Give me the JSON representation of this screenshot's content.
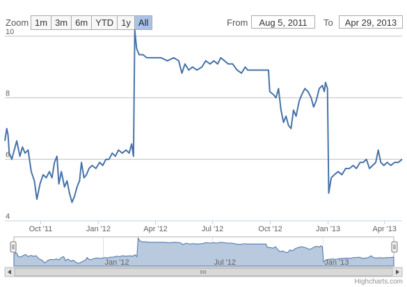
{
  "range_selector": {
    "zoom_label": "Zoom",
    "buttons": [
      {
        "label": "1m",
        "active": false
      },
      {
        "label": "3m",
        "active": false
      },
      {
        "label": "6m",
        "active": false
      },
      {
        "label": "YTD",
        "active": false
      },
      {
        "label": "1y",
        "active": false
      },
      {
        "label": "All",
        "active": true
      }
    ],
    "from_label": "From",
    "from_value": "Aug 5, 2011",
    "to_label": "To",
    "to_value": "Apr 29, 2013"
  },
  "credits": "Highcharts.com",
  "chart_data": {
    "type": "line",
    "series_color": "#4572a7",
    "navigator_fill": "#b9c9de",
    "ylim": [
      4,
      10
    ],
    "y_ticks": [
      4,
      6,
      8,
      10
    ],
    "x_range": [
      "2011-08-05",
      "2013-04-29"
    ],
    "x_ticks": [
      {
        "date": "2011-10-01",
        "label": "Oct '11"
      },
      {
        "date": "2012-01-01",
        "label": "Jan '12"
      },
      {
        "date": "2012-04-01",
        "label": "Apr '12"
      },
      {
        "date": "2012-07-01",
        "label": "Jul '12"
      },
      {
        "date": "2012-10-01",
        "label": "Oct '12"
      },
      {
        "date": "2013-01-01",
        "label": "Jan '13"
      },
      {
        "date": "2013-04-01",
        "label": "Apr '13"
      }
    ],
    "navigator_ticks": [
      {
        "date": "2012-01-01",
        "label": "Jan '12"
      },
      {
        "date": "2012-07-01",
        "label": "Jul '12"
      },
      {
        "date": "2013-01-01",
        "label": "Jan '13"
      }
    ],
    "points": [
      [
        "2011-08-05",
        6.6
      ],
      [
        "2011-08-08",
        7.0
      ],
      [
        "2011-08-10",
        6.8
      ],
      [
        "2011-08-12",
        6.2
      ],
      [
        "2011-08-16",
        6.0
      ],
      [
        "2011-08-20",
        6.3
      ],
      [
        "2011-08-24",
        6.6
      ],
      [
        "2011-08-29",
        6.1
      ],
      [
        "2011-09-02",
        6.4
      ],
      [
        "2011-09-06",
        6.2
      ],
      [
        "2011-09-11",
        6.3
      ],
      [
        "2011-09-16",
        5.6
      ],
      [
        "2011-09-21",
        5.3
      ],
      [
        "2011-09-25",
        4.7
      ],
      [
        "2011-09-30",
        5.2
      ],
      [
        "2011-10-05",
        5.5
      ],
      [
        "2011-10-10",
        5.4
      ],
      [
        "2011-10-15",
        5.6
      ],
      [
        "2011-10-19",
        5.4
      ],
      [
        "2011-10-23",
        5.9
      ],
      [
        "2011-10-27",
        6.1
      ],
      [
        "2011-10-30",
        5.2
      ],
      [
        "2011-11-03",
        5.6
      ],
      [
        "2011-11-08",
        5.1
      ],
      [
        "2011-11-12",
        5.3
      ],
      [
        "2011-11-16",
        4.9
      ],
      [
        "2011-11-20",
        4.6
      ],
      [
        "2011-11-24",
        4.8
      ],
      [
        "2011-11-28",
        5.1
      ],
      [
        "2011-12-02",
        5.3
      ],
      [
        "2011-12-05",
        5.9
      ],
      [
        "2011-12-09",
        5.4
      ],
      [
        "2011-12-13",
        5.5
      ],
      [
        "2011-12-17",
        5.7
      ],
      [
        "2011-12-22",
        5.8
      ],
      [
        "2011-12-28",
        5.7
      ],
      [
        "2012-01-03",
        5.9
      ],
      [
        "2012-01-08",
        5.8
      ],
      [
        "2012-01-13",
        6.0
      ],
      [
        "2012-01-18",
        6.0
      ],
      [
        "2012-01-23",
        6.2
      ],
      [
        "2012-01-28",
        6.1
      ],
      [
        "2012-02-02",
        6.3
      ],
      [
        "2012-02-08",
        6.2
      ],
      [
        "2012-02-14",
        6.3
      ],
      [
        "2012-02-19",
        6.2
      ],
      [
        "2012-02-23",
        6.5
      ],
      [
        "2012-02-26",
        6.1
      ],
      [
        "2012-02-28",
        10.2
      ],
      [
        "2012-03-02",
        9.6
      ],
      [
        "2012-03-06",
        9.4
      ],
      [
        "2012-03-12",
        9.4
      ],
      [
        "2012-03-18",
        9.3
      ],
      [
        "2012-03-25",
        9.3
      ],
      [
        "2012-04-01",
        9.3
      ],
      [
        "2012-04-10",
        9.3
      ],
      [
        "2012-04-20",
        9.2
      ],
      [
        "2012-04-30",
        9.3
      ],
      [
        "2012-05-08",
        9.2
      ],
      [
        "2012-05-13",
        8.8
      ],
      [
        "2012-05-18",
        9.1
      ],
      [
        "2012-05-24",
        8.9
      ],
      [
        "2012-05-30",
        9.0
      ],
      [
        "2012-06-06",
        8.9
      ],
      [
        "2012-06-14",
        9.0
      ],
      [
        "2012-06-20",
        9.2
      ],
      [
        "2012-06-27",
        9.1
      ],
      [
        "2012-07-03",
        9.2
      ],
      [
        "2012-07-09",
        9.1
      ],
      [
        "2012-07-14",
        9.3
      ],
      [
        "2012-07-20",
        9.2
      ],
      [
        "2012-07-26",
        9.1
      ],
      [
        "2012-08-02",
        9.1
      ],
      [
        "2012-08-09",
        8.9
      ],
      [
        "2012-08-16",
        8.8
      ],
      [
        "2012-08-22",
        9.0
      ],
      [
        "2012-08-26",
        8.9
      ],
      [
        "2012-08-30",
        8.9
      ],
      [
        "2012-09-15",
        8.9
      ],
      [
        "2012-09-28",
        8.9
      ],
      [
        "2012-09-30",
        8.2
      ],
      [
        "2012-10-06",
        8.1
      ],
      [
        "2012-10-10",
        8.0
      ],
      [
        "2012-10-14",
        8.3
      ],
      [
        "2012-10-18",
        7.6
      ],
      [
        "2012-10-22",
        7.2
      ],
      [
        "2012-10-26",
        7.4
      ],
      [
        "2012-10-30",
        7.1
      ],
      [
        "2012-11-03",
        7.0
      ],
      [
        "2012-11-07",
        7.6
      ],
      [
        "2012-11-11",
        7.4
      ],
      [
        "2012-11-16",
        7.9
      ],
      [
        "2012-11-20",
        8.1
      ],
      [
        "2012-11-25",
        8.3
      ],
      [
        "2012-11-30",
        8.2
      ],
      [
        "2012-12-05",
        8.0
      ],
      [
        "2012-12-09",
        7.7
      ],
      [
        "2012-12-13",
        7.9
      ],
      [
        "2012-12-18",
        8.3
      ],
      [
        "2012-12-23",
        8.4
      ],
      [
        "2012-12-26",
        8.2
      ],
      [
        "2012-12-28",
        8.5
      ],
      [
        "2012-12-31",
        8.3
      ],
      [
        "2013-01-02",
        4.9
      ],
      [
        "2013-01-06",
        5.4
      ],
      [
        "2013-01-11",
        5.5
      ],
      [
        "2013-01-17",
        5.6
      ],
      [
        "2013-01-23",
        5.5
      ],
      [
        "2013-01-29",
        5.7
      ],
      [
        "2013-02-04",
        5.7
      ],
      [
        "2013-02-10",
        5.8
      ],
      [
        "2013-02-15",
        5.7
      ],
      [
        "2013-02-21",
        5.9
      ],
      [
        "2013-02-26",
        5.9
      ],
      [
        "2013-03-03",
        6.0
      ],
      [
        "2013-03-08",
        5.7
      ],
      [
        "2013-03-13",
        5.8
      ],
      [
        "2013-03-18",
        5.9
      ],
      [
        "2013-03-22",
        6.3
      ],
      [
        "2013-03-26",
        5.9
      ],
      [
        "2013-03-31",
        5.8
      ],
      [
        "2013-04-05",
        5.9
      ],
      [
        "2013-04-11",
        5.8
      ],
      [
        "2013-04-17",
        5.9
      ],
      [
        "2013-04-23",
        5.9
      ],
      [
        "2013-04-29",
        6.0
      ]
    ]
  }
}
